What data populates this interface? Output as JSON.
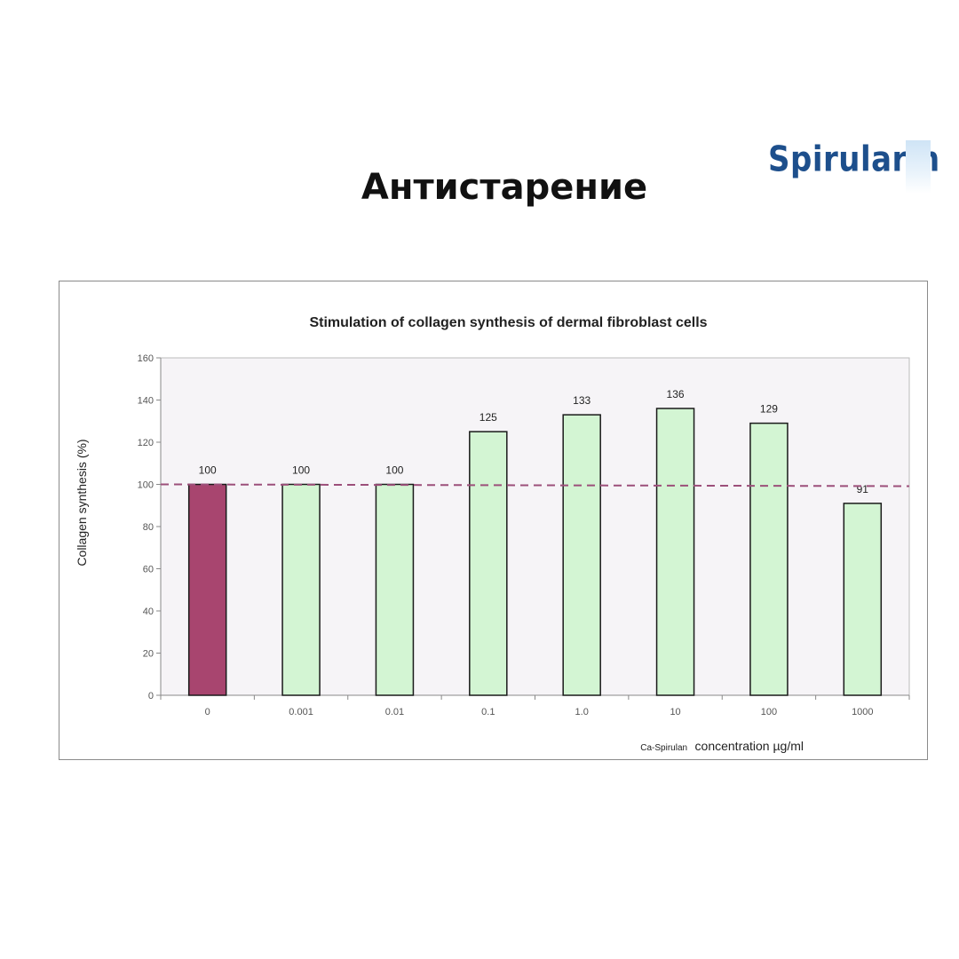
{
  "slide_title": "Антистарение",
  "logo_text": "Spirularin",
  "chart_data": {
    "type": "bar",
    "title": "Stimulation of collagen synthesis of dermal fibroblast cells",
    "ylabel": "Collagen synthesis (%)",
    "xlabel_prefix": "Ca-Spirulan",
    "xlabel_main": "concentration µg/ml",
    "categories": [
      "0",
      "0.001",
      "0.01",
      "0.1",
      "1.0",
      "10",
      "100",
      "1000"
    ],
    "values": [
      100,
      100,
      100,
      125,
      133,
      136,
      129,
      91
    ],
    "data_labels": [
      "100",
      "100",
      "100",
      "125",
      "133",
      "136",
      "129",
      "91"
    ],
    "y_ticks": [
      "0",
      "20",
      "40",
      "60",
      "80",
      "100",
      "120",
      "140",
      "160"
    ],
    "ylim": [
      0,
      160
    ],
    "reference_line": 100,
    "colors": {
      "control": "#a8456f",
      "treatment": "#d3f5d3",
      "bar_border": "#1a1a1a",
      "reference_line": "#9c4f7a",
      "plot_background": "#f6f4f7",
      "gridline": "#bbbbbb"
    },
    "grid": false
  }
}
